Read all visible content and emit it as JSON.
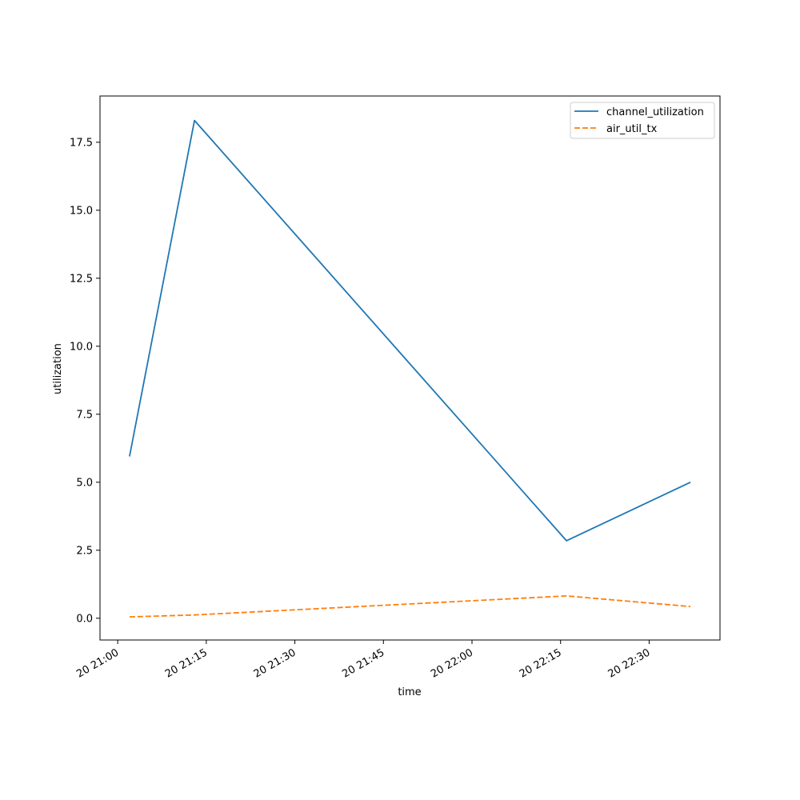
{
  "chart_data": {
    "type": "line",
    "xlabel": "time",
    "ylabel": "utilization",
    "ylim": [
      -0.8,
      19.2
    ],
    "xlim": [
      "20 20:57",
      "20 22:42"
    ],
    "x_ticks": [
      "20 21:00",
      "20 21:15",
      "20 21:30",
      "20 21:45",
      "20 22:00",
      "20 22:15",
      "20 22:30"
    ],
    "y_ticks": [
      "0.0",
      "2.5",
      "5.0",
      "7.5",
      "10.0",
      "12.5",
      "15.0",
      "17.5"
    ],
    "x": [
      "20 21:02",
      "20 21:13",
      "20 22:16",
      "20 22:37"
    ],
    "series": [
      {
        "name": "channel_utilization",
        "values": [
          5.95,
          18.3,
          2.85,
          5.0
        ],
        "color": "#1f77b4",
        "style": "solid"
      },
      {
        "name": "air_util_tx",
        "values": [
          0.05,
          0.12,
          0.82,
          0.43
        ],
        "color": "#ff7f0e",
        "style": "dashed"
      }
    ],
    "legend": {
      "position": "top-right"
    },
    "grid": false
  }
}
